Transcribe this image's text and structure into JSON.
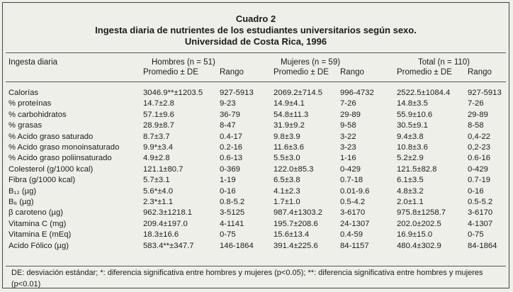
{
  "title": {
    "line1": "Cuadro 2",
    "line2": "Ingesta diaria de nutrientes de los estudiantes universitarios según sexo.",
    "line3": "Universidad de Costa Rica, 1996"
  },
  "columns": {
    "row_label": "Ingesta diaria",
    "groups": [
      "Hombres (n = 51)",
      "Mujeres (n = 59)",
      "Total (n = 110)"
    ],
    "mean": "Promedio ± DE",
    "range": "Rango"
  },
  "rows": [
    {
      "label": "Calorías",
      "h_mean": "3046.9**±1203.5",
      "h_range": "927-5913",
      "m_mean": "2069.2±714.5",
      "m_range": "996-4732",
      "t_mean": "2522.5±1084.4",
      "t_range": "927-5913"
    },
    {
      "label": "% proteínas",
      "h_mean": "14.7±2.8",
      "h_range": "9-23",
      "m_mean": "14.9±4.1",
      "m_range": "7-26",
      "t_mean": "14.8±3.5",
      "t_range": "7-26"
    },
    {
      "label": "% carbohidratos",
      "h_mean": "57.1±9.6",
      "h_range": "36-79",
      "m_mean": "54.8±11.3",
      "m_range": "29-89",
      "t_mean": "55.9±10.6",
      "t_range": "29-89"
    },
    {
      "label": "% grasas",
      "h_mean": "28.9±8.7",
      "h_range": "8-47",
      "m_mean": "31.9±9.2",
      "m_range": "9-58",
      "t_mean": "30.5±9.1",
      "t_range": "8-58"
    },
    {
      "label": "% Acido graso saturado",
      "h_mean": "8.7±3.7",
      "h_range": "0.4-17",
      "m_mean": "9.8±3.9",
      "m_range": "3-22",
      "t_mean": "9.4±3.8",
      "t_range": "0,4-22"
    },
    {
      "label": "% Acido graso monoinsaturado",
      "h_mean": "9.9*±3.4",
      "h_range": "0.2-16",
      "m_mean": "11.6±3.6",
      "m_range": "3-23",
      "t_mean": "10.8±3.6",
      "t_range": "0,2-23"
    },
    {
      "label": "% Acido graso poliinsaturado",
      "h_mean": "4.9±2.8",
      "h_range": "0.6-13",
      "m_mean": "5.5±3.0",
      "m_range": "1-16",
      "t_mean": "5.2±2.9",
      "t_range": "0.6-16"
    },
    {
      "label": "Colesterol (g/1000 kcal)",
      "h_mean": "121.1±80.7",
      "h_range": "0-369",
      "m_mean": "122.0±85.3",
      "m_range": "0-429",
      "t_mean": "121.5±82.8",
      "t_range": "0-429"
    },
    {
      "label": "Fibra (g/1000 kcal)",
      "h_mean": "5.7±3.1",
      "h_range": "1-19",
      "m_mean": "6.5±3.8",
      "m_range": "0.7-18",
      "t_mean": "6.1±3.5",
      "t_range": "0.7-19"
    },
    {
      "label": "B₁₂ (µg)",
      "h_mean": "5.6*±4.0",
      "h_range": "0-16",
      "m_mean": "4.1±2.3",
      "m_range": "0.01-9.6",
      "t_mean": "4.8±3.2",
      "t_range": "0-16"
    },
    {
      "label": "B₆ (µg)",
      "h_mean": "2.3*±1.1",
      "h_range": "0.8-5.2",
      "m_mean": "1.7±1.0",
      "m_range": "0.5-4.2",
      "t_mean": "2.0±1.1",
      "t_range": "0.5-5.2"
    },
    {
      "label": "β caroteno (µg)",
      "h_mean": "962.3±1218.1",
      "h_range": "3-5125",
      "m_mean": "987.4±1303.2",
      "m_range": "3-6170",
      "t_mean": "975.8±1258.7",
      "t_range": "3-6170"
    },
    {
      "label": "Vitamina C (mg)",
      "h_mean": "209.4±197.0",
      "h_range": "4-1141",
      "m_mean": "195.7±208.6",
      "m_range": "24-1307",
      "t_mean": "202.0±202.5",
      "t_range": "4-1307"
    },
    {
      "label": "Vitamina E (mEq)",
      "h_mean": "18.3±16.6",
      "h_range": "0-75",
      "m_mean": "15.6±13.4",
      "m_range": "0.4-59",
      "t_mean": "16.9±15.0",
      "t_range": "0-75"
    },
    {
      "label": "Acido Fólico (µg)",
      "h_mean": "583.4**±347.7",
      "h_range": "146-1864",
      "m_mean": "391.4±225.6",
      "m_range": "84-1157",
      "t_mean": "480.4±302.9",
      "t_range": "84-1864"
    }
  ],
  "footnote": "DE: desviación estándar; *: diferencia significativa entre hombres y mujeres (p<0.05); **: diferencia significativa entre hombres y mujeres (p<0.01)"
}
